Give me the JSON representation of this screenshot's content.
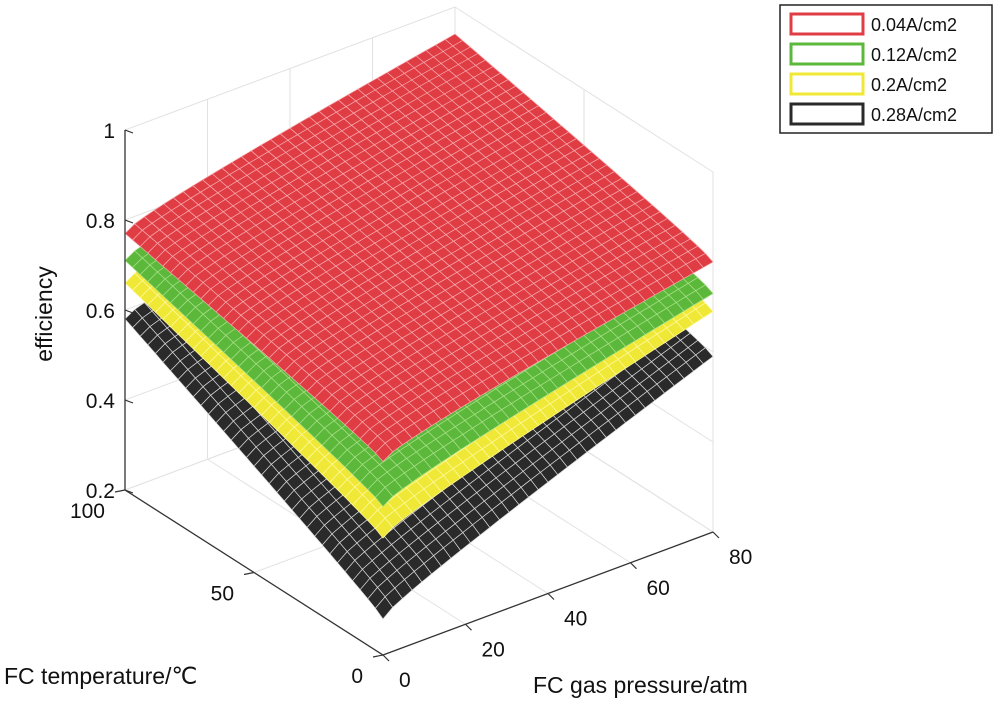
{
  "chart_data": {
    "type": "surface",
    "zlabel": "efficiency",
    "xlabel": "FC gas pressure/atm",
    "ylabel": "FC temperature/℃",
    "zlim": [
      0.2,
      1
    ],
    "z_ticks": [
      "0.2",
      "0.4",
      "0.6",
      "0.8",
      "1"
    ],
    "pressure_ticks": [
      "0",
      "20",
      "40",
      "60",
      "80"
    ],
    "temperature_ticks": [
      "0",
      "50",
      "100"
    ],
    "pressure_range": [
      0,
      80
    ],
    "temperature_range": [
      0,
      100
    ],
    "grid": true,
    "legend_position": "top-right",
    "series": [
      {
        "name": "0.04A/cm2",
        "color": "#e03c44",
        "mesh_color": "#f7a8ac",
        "corners": {
          "p0_t0": 0.63,
          "p80_t0": 0.8,
          "p0_t100": 0.77,
          "p80_t100": 0.94
        }
      },
      {
        "name": "0.12A/cm2",
        "color": "#5cb83a",
        "mesh_color": "#a8e08a",
        "corners": {
          "p0_t0": 0.53,
          "p80_t0": 0.73,
          "p0_t100": 0.71,
          "p80_t100": 0.87
        }
      },
      {
        "name": "0.2A/cm2",
        "color": "#f0e836",
        "mesh_color": "#fffaa0",
        "corners": {
          "p0_t0": 0.46,
          "p80_t0": 0.69,
          "p0_t100": 0.66,
          "p80_t100": 0.83
        }
      },
      {
        "name": "0.28A/cm2",
        "color": "#2a2a2a",
        "mesh_color": "#d8d8d8",
        "corners": {
          "p0_t0": 0.28,
          "p80_t0": 0.59,
          "p0_t100": 0.58,
          "p80_t100": 0.74
        }
      }
    ]
  }
}
